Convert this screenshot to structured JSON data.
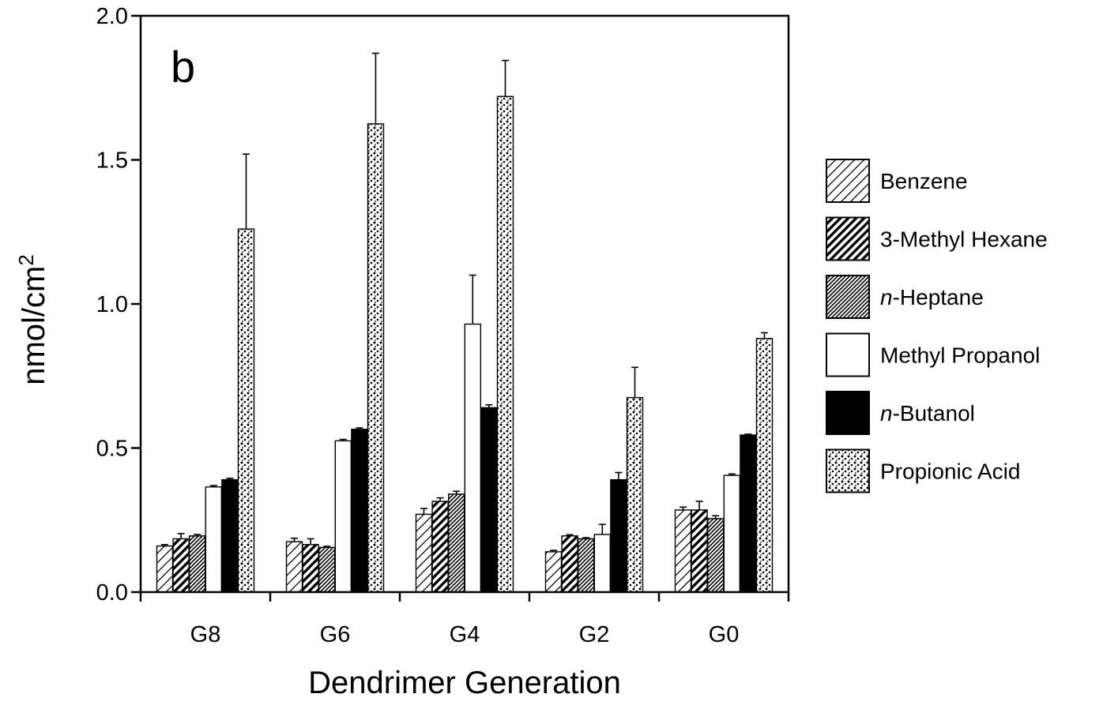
{
  "chart_data": {
    "type": "bar",
    "panel_label": "b",
    "xlabel": "Dendrimer Generation",
    "ylabel": "nmol/cm2",
    "ylabel_base": "nmol/cm",
    "ylabel_sup": "2",
    "ylim": [
      0,
      2.0
    ],
    "yticks": [
      "0.0",
      "0.5",
      "1.0",
      "1.5",
      "2.0"
    ],
    "ytick_values": [
      0,
      0.5,
      1.0,
      1.5,
      2.0
    ],
    "categories": [
      "G8",
      "G6",
      "G4",
      "G2",
      "G0"
    ],
    "error_bars": "one-sided (upper)",
    "legend_position": "right",
    "grid": false,
    "series": [
      {
        "name": "Benzene",
        "name_prefix": "",
        "name_rest": "Benzene",
        "pattern": "sparse-hatch",
        "values": [
          0.16,
          0.175,
          0.27,
          0.14,
          0.285
        ],
        "errors": [
          0.005,
          0.012,
          0.02,
          0.005,
          0.01
        ]
      },
      {
        "name": "3-Methyl Hexane",
        "name_prefix": "",
        "name_rest": "3-Methyl Hexane",
        "pattern": "bold-hatch",
        "values": [
          0.185,
          0.165,
          0.315,
          0.195,
          0.285
        ],
        "errors": [
          0.018,
          0.02,
          0.012,
          0.004,
          0.03
        ]
      },
      {
        "name": "n-Heptane",
        "name_prefix": "n",
        "name_rest": "-Heptane",
        "pattern": "dense-hatch",
        "values": [
          0.195,
          0.155,
          0.34,
          0.185,
          0.255
        ],
        "errors": [
          0.005,
          0.004,
          0.01,
          0.004,
          0.01
        ]
      },
      {
        "name": "Methyl Propanol",
        "name_prefix": "",
        "name_rest": "Methyl Propanol",
        "pattern": "white",
        "values": [
          0.365,
          0.525,
          0.93,
          0.2,
          0.405
        ],
        "errors": [
          0.005,
          0.005,
          0.17,
          0.035,
          0.005
        ]
      },
      {
        "name": "n-Butanol",
        "name_prefix": "n",
        "name_rest": "-Butanol",
        "pattern": "black",
        "values": [
          0.39,
          0.565,
          0.64,
          0.39,
          0.545
        ],
        "errors": [
          0.005,
          0.005,
          0.01,
          0.025,
          0.003
        ]
      },
      {
        "name": "Propionic Acid",
        "name_prefix": "",
        "name_rest": "Propionic Acid",
        "pattern": "dots",
        "values": [
          1.26,
          1.625,
          1.72,
          0.675,
          0.88
        ],
        "errors": [
          0.26,
          0.245,
          0.125,
          0.105,
          0.02
        ]
      }
    ],
    "colors": {
      "ink": "#000000",
      "paper": "#ffffff"
    }
  }
}
